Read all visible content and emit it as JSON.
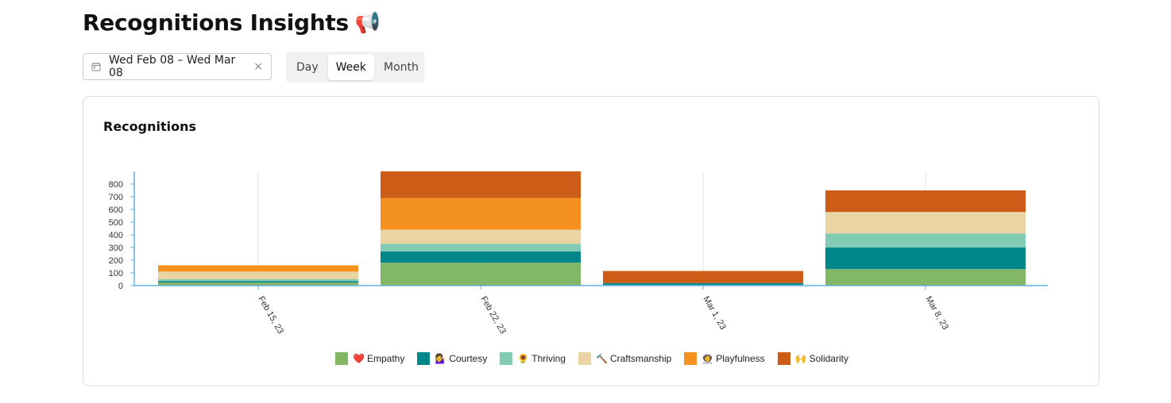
{
  "page": {
    "title": "Recognitions Insights",
    "title_emoji": "📢"
  },
  "date_picker": {
    "value": "Wed Feb 08 – Wed Mar 08",
    "clear_glyph": "×"
  },
  "range_toggle": {
    "options": [
      "Day",
      "Week",
      "Month"
    ],
    "selected": "Week"
  },
  "card": {
    "title": "Recognitions"
  },
  "colors": {
    "Empathy": "#82b865",
    "Courtesy": "#00878a",
    "Thriving": "#82cbb5",
    "Craftsmanship": "#ead4a4",
    "Playfulness": "#f5921f",
    "Solidarity": "#cc5c16"
  },
  "chart_data": {
    "type": "bar",
    "stacked": true,
    "categories": [
      "Feb 15, 23",
      "Feb 22, 23",
      "Mar 1, 23",
      "Mar 8, 23"
    ],
    "series": [
      {
        "name": "Empathy",
        "emoji": "❤️",
        "values": [
          25,
          180,
          5,
          130
        ]
      },
      {
        "name": "Courtesy",
        "emoji": "💁‍♀️",
        "values": [
          10,
          90,
          15,
          170
        ]
      },
      {
        "name": "Thriving",
        "emoji": "🌻",
        "values": [
          15,
          60,
          0,
          110
        ]
      },
      {
        "name": "Craftsmanship",
        "emoji": "🔨",
        "values": [
          60,
          110,
          0,
          170
        ]
      },
      {
        "name": "Playfulness",
        "emoji": "👩‍🚀",
        "values": [
          50,
          250,
          0,
          0
        ]
      },
      {
        "name": "Solidarity",
        "emoji": "🙌",
        "values": [
          0,
          210,
          95,
          170
        ]
      }
    ],
    "yticks": [
      0,
      100,
      200,
      300,
      400,
      500,
      600,
      700,
      800
    ],
    "ylim": [
      0,
      900
    ],
    "grid": "vertical",
    "legend": "bottom"
  }
}
